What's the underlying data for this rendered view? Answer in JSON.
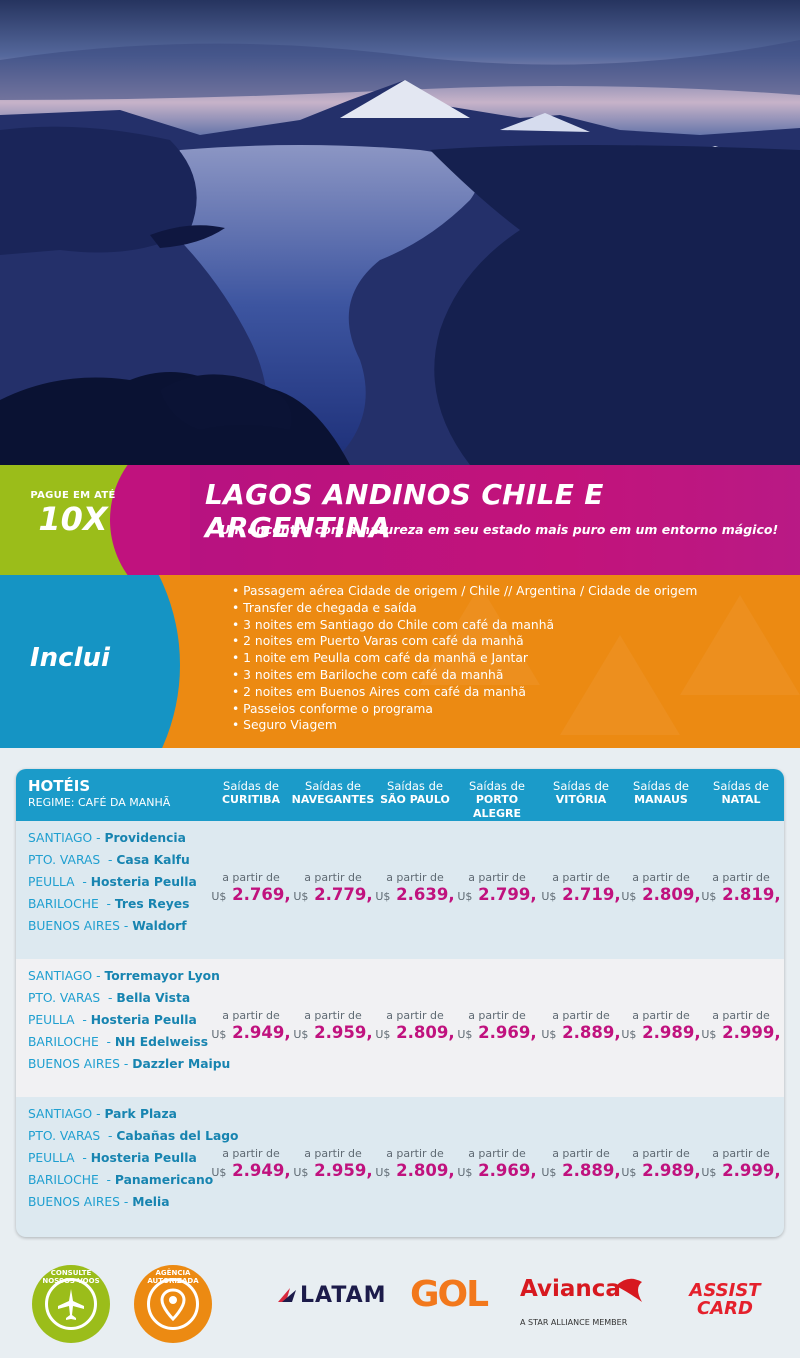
{
  "promo": {
    "pay_label": "PAGUE EM ATÉ",
    "pay_value": "10X"
  },
  "header": {
    "title": "LAGOS ANDINOS CHILE E ARGENTINA",
    "subtitle": "Um encontro com a natureza em seu estado mais puro em um entorno mágico!"
  },
  "includes": {
    "label": "Inclui",
    "items": [
      "Passagem aérea Cidade de origem / Chile // Argentina / Cidade de origem",
      "Transfer de chegada e saída",
      "3 noites em Santiago do Chile com café da manhã",
      "2 noites em Puerto Varas com café da manhã",
      "1 noite em Peulla com café da manhã e Jantar",
      "3 noites em Bariloche com café da manhã",
      "2 noites em Buenos Aires com café da manhã",
      "Passeios conforme o programa",
      "Seguro Viagem"
    ]
  },
  "table": {
    "title": "HOTÉIS",
    "subtitle": "REGIME: CAFÉ DA MANHÃ",
    "columns": [
      {
        "top": "Saídas de",
        "city": "CURITIBA"
      },
      {
        "top": "Saídas de",
        "city": "NAVEGANTES"
      },
      {
        "top": "Saídas de",
        "city": "SÃO PAULO"
      },
      {
        "top": "Saídas de",
        "city": "PORTO ALEGRE"
      },
      {
        "top": "Saídas de",
        "city": "VITÓRIA"
      },
      {
        "top": "Saídas de",
        "city": "MANAUS"
      },
      {
        "top": "Saídas de",
        "city": "NATAL"
      }
    ],
    "price_prefix": "a partir de",
    "currency": "U$",
    "rows": [
      {
        "hotels": [
          {
            "city": "SANTIAGO",
            "sep": " - ",
            "name": "Providencia"
          },
          {
            "city": "PTO. VARAS",
            "sep": "  - ",
            "name": "Casa Kalfu"
          },
          {
            "city": "PEULLA",
            "sep": "  - ",
            "name": "Hosteria Peulla"
          },
          {
            "city": "BARILOCHE",
            "sep": "  - ",
            "name": "Tres Reyes"
          },
          {
            "city": "BUENOS AIRES",
            "sep": " - ",
            "name": "Waldorf"
          }
        ],
        "prices": [
          "2.769,",
          "2.779,",
          "2.639,",
          "2.799,",
          "2.719,",
          "2.809,",
          "2.819,"
        ]
      },
      {
        "hotels": [
          {
            "city": "SANTIAGO",
            "sep": " - ",
            "name": "Torremayor Lyon"
          },
          {
            "city": "PTO. VARAS",
            "sep": "  - ",
            "name": "Bella Vista"
          },
          {
            "city": "PEULLA",
            "sep": "  - ",
            "name": "Hosteria Peulla"
          },
          {
            "city": "BARILOCHE",
            "sep": "  - ",
            "name": "NH Edelweiss"
          },
          {
            "city": "BUENOS AIRES",
            "sep": " - ",
            "name": "Dazzler Maipu"
          }
        ],
        "prices": [
          "2.949,",
          "2.959,",
          "2.809,",
          "2.969,",
          "2.889,",
          "2.989,",
          "2.999,"
        ]
      },
      {
        "hotels": [
          {
            "city": "SANTIAGO",
            "sep": " - ",
            "name": "Park Plaza"
          },
          {
            "city": "PTO. VARAS",
            "sep": "  - ",
            "name": "Cabañas del Lago"
          },
          {
            "city": "PEULLA",
            "sep": "  - ",
            "name": "Hosteria Peulla"
          },
          {
            "city": "BARILOCHE",
            "sep": "  - ",
            "name": "Panamericano"
          },
          {
            "city": "BUENOS AIRES",
            "sep": " - ",
            "name": "Melia"
          }
        ],
        "prices": [
          "2.949,",
          "2.959,",
          "2.809,",
          "2.969,",
          "2.889,",
          "2.989,",
          "2.999,"
        ]
      }
    ]
  },
  "footer": {
    "badge1": {
      "text": "CONSULTE NOSSOS VOOS",
      "icon": "airplane-icon",
      "color": "#9bbd1a"
    },
    "badge2": {
      "text": "AGÊNCIA AUTORIZADA",
      "icon": "location-pin-icon",
      "color": "#ec8a12"
    },
    "logos": {
      "latam": "LATAM",
      "gol": "GOL",
      "avianca": "Avianca",
      "avianca_sub": "A STAR ALLIANCE MEMBER",
      "assist_1": "ASSIST",
      "assist_2": "CARD"
    }
  },
  "colors": {
    "magenta": "#c0127e",
    "lime": "#9bbd1a",
    "orange": "#ec8a12",
    "blue": "#1594c4"
  }
}
